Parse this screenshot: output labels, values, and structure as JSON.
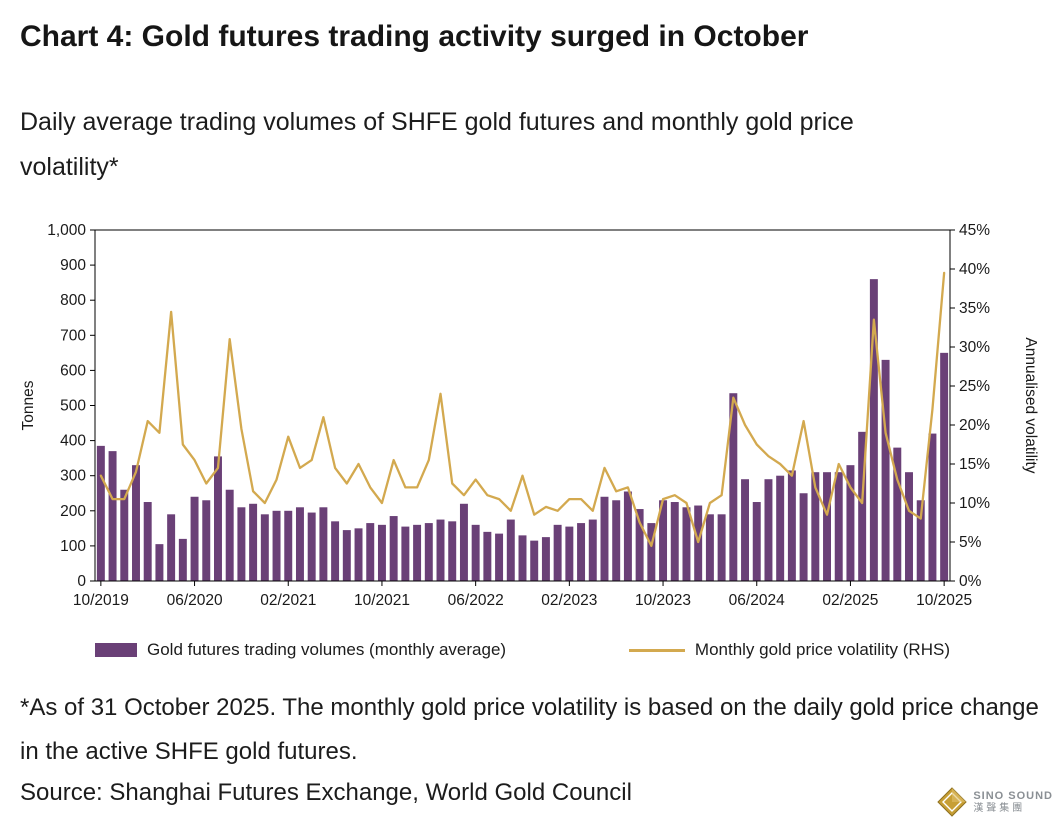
{
  "header": {
    "title": "Chart 4: Gold futures trading activity surged in October",
    "subtitle": "Daily average trading volumes of SHFE gold futures and monthly gold price volatility*"
  },
  "chart_data": {
    "type": "bar+line",
    "categories": [
      "10/2019",
      "11/2019",
      "12/2019",
      "01/2020",
      "02/2020",
      "03/2020",
      "04/2020",
      "05/2020",
      "06/2020",
      "07/2020",
      "08/2020",
      "09/2020",
      "10/2020",
      "11/2020",
      "12/2020",
      "01/2021",
      "02/2021",
      "03/2021",
      "04/2021",
      "05/2021",
      "06/2021",
      "07/2021",
      "08/2021",
      "09/2021",
      "10/2021",
      "11/2021",
      "12/2021",
      "01/2022",
      "02/2022",
      "03/2022",
      "04/2022",
      "05/2022",
      "06/2022",
      "07/2022",
      "08/2022",
      "09/2022",
      "10/2022",
      "11/2022",
      "12/2022",
      "01/2023",
      "02/2023",
      "03/2023",
      "04/2023",
      "05/2023",
      "06/2023",
      "07/2023",
      "08/2023",
      "09/2023",
      "10/2023",
      "11/2023",
      "12/2023",
      "01/2024",
      "02/2024",
      "03/2024",
      "04/2024",
      "05/2024",
      "06/2024",
      "07/2024",
      "08/2024",
      "09/2024",
      "10/2024",
      "11/2024",
      "12/2024",
      "01/2025",
      "02/2025",
      "03/2025",
      "04/2025",
      "05/2025",
      "06/2025",
      "07/2025",
      "08/2025",
      "09/2025",
      "10/2025"
    ],
    "series": [
      {
        "name": "Gold futures trading volumes (monthly average)",
        "type": "bar",
        "axis": "left",
        "unit": "tonnes",
        "color": "#6a4077",
        "values": [
          385,
          370,
          260,
          330,
          225,
          105,
          190,
          120,
          240,
          230,
          355,
          260,
          210,
          220,
          190,
          200,
          200,
          210,
          195,
          210,
          170,
          145,
          150,
          165,
          160,
          185,
          155,
          160,
          165,
          175,
          170,
          220,
          160,
          140,
          135,
          175,
          130,
          115,
          125,
          160,
          155,
          165,
          175,
          240,
          230,
          255,
          205,
          165,
          230,
          225,
          210,
          215,
          190,
          190,
          535,
          290,
          225,
          290,
          300,
          315,
          250,
          310,
          310,
          310,
          330,
          425,
          860,
          630,
          380,
          310,
          230,
          420,
          650
        ]
      },
      {
        "name": "Monthly gold price volatility (RHS)",
        "type": "line",
        "axis": "right",
        "unit": "%",
        "color": "#d3a94f",
        "values": [
          13.5,
          10.5,
          10.5,
          14,
          20.5,
          19,
          34.5,
          17.5,
          15.5,
          12.5,
          14.5,
          31,
          19.5,
          11.5,
          10,
          13,
          18.5,
          14.5,
          15.5,
          21,
          14.5,
          12.5,
          15,
          12,
          10,
          15.5,
          12,
          12,
          15.5,
          24,
          12.5,
          11,
          13,
          11,
          10.5,
          9,
          13.5,
          8.5,
          9.5,
          9,
          10.5,
          10.5,
          9,
          14.5,
          11.5,
          12,
          7.5,
          4.5,
          10.5,
          11,
          10,
          5,
          10,
          11,
          23.5,
          20,
          17.5,
          16,
          15,
          13.5,
          20.5,
          12,
          8.5,
          15,
          12,
          10,
          33.5,
          19,
          13,
          9,
          8,
          22,
          39.5
        ]
      }
    ],
    "left_axis": {
      "label": "Tonnes",
      "min": 0,
      "max": 1000,
      "step": 100
    },
    "right_axis": {
      "label": "Annualised volatility",
      "min": 0,
      "max": 45,
      "step": 5,
      "suffix": "%"
    },
    "x_tick_labels": [
      "10/2019",
      "06/2020",
      "02/2021",
      "10/2021",
      "06/2022",
      "02/2023",
      "10/2023",
      "06/2024",
      "02/2025",
      "10/2025"
    ],
    "grid": false,
    "legend_position": "bottom"
  },
  "footnote": "*As of 31 October 2025. The monthly gold price volatility is based on the daily gold price change in the active SHFE gold futures.",
  "source": "Source: Shanghai Futures Exchange, World Gold Council",
  "watermark": {
    "line1": "SINO SOUND",
    "line2": "漢聲集團",
    "icon": "diamond-logo",
    "gold": "#c79f35"
  }
}
